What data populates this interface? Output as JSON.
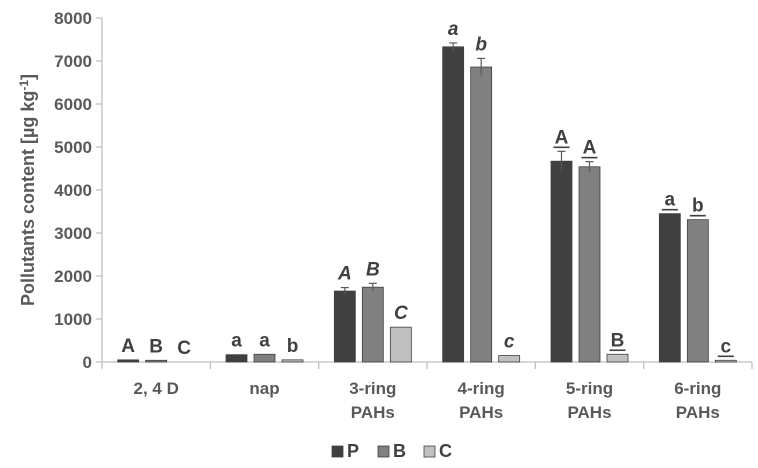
{
  "chart_data": {
    "type": "bar",
    "title": "",
    "xlabel": "",
    "ylabel": "Pollutants content [µg kg",
    "ylabel_sup": "-1",
    "ylabel_end": "]",
    "ylim": [
      0,
      8000
    ],
    "yticks": [
      0,
      1000,
      2000,
      3000,
      4000,
      5000,
      6000,
      7000,
      8000
    ],
    "grid": false,
    "legend_position": "bottom",
    "categories": [
      [
        "2, 4 D"
      ],
      [
        "nap"
      ],
      [
        "3-ring",
        "PAHs"
      ],
      [
        "4-ring",
        "PAHs"
      ],
      [
        "5-ring",
        "PAHs"
      ],
      [
        "6-ring",
        "PAHs"
      ]
    ],
    "series": [
      {
        "name": "P",
        "color": "#404040",
        "values": [
          50,
          170,
          1650,
          7330,
          4670,
          3450
        ],
        "errors": [
          0,
          0,
          80,
          90,
          230,
          0
        ]
      },
      {
        "name": "B",
        "color": "#808080",
        "values": [
          40,
          180,
          1740,
          6860,
          4540,
          3310
        ],
        "errors": [
          0,
          0,
          90,
          200,
          120,
          0
        ]
      },
      {
        "name": "C",
        "color": "#c0c0c0",
        "values": [
          0,
          50,
          810,
          150,
          180,
          40
        ],
        "errors": [
          0,
          0,
          0,
          0,
          0,
          0
        ]
      }
    ],
    "significance": [
      {
        "labels": [
          "A",
          "B",
          "C"
        ],
        "style": "normal"
      },
      {
        "labels": [
          "a",
          "a",
          "b"
        ],
        "style": "normal"
      },
      {
        "labels": [
          "A",
          "B",
          "C"
        ],
        "style": "italic"
      },
      {
        "labels": [
          "a",
          "b",
          "c"
        ],
        "style": "italic"
      },
      {
        "labels": [
          "A",
          "A",
          "B"
        ],
        "style": "underline"
      },
      {
        "labels": [
          "a",
          "b",
          "c"
        ],
        "style": "underline"
      }
    ]
  }
}
